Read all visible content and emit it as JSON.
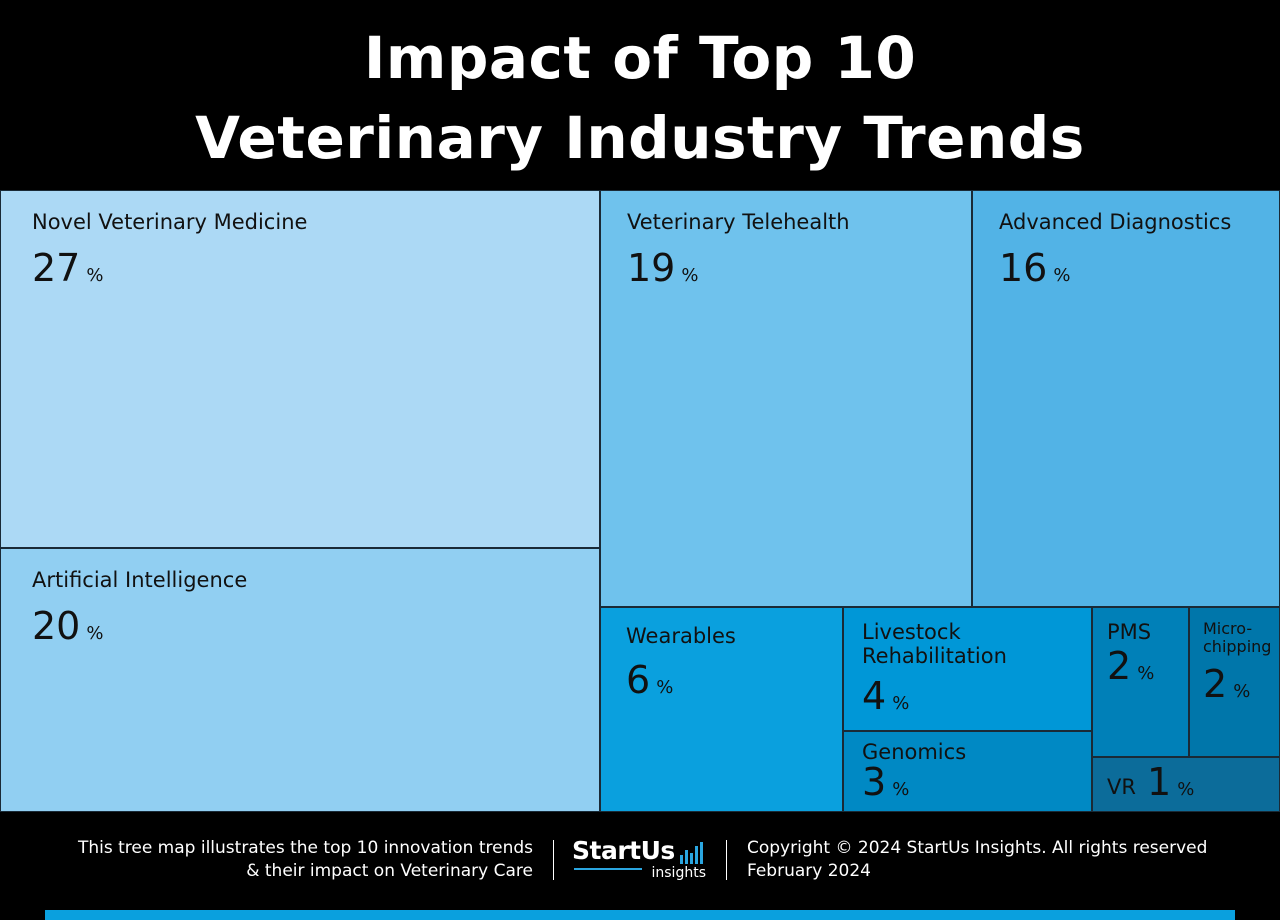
{
  "title": {
    "line1": "Impact of Top 10",
    "line2": "Veterinary Industry Trends"
  },
  "chart_data": {
    "type": "treemap",
    "unit": "%",
    "items": [
      {
        "name": "Novel Veterinary Medicine",
        "value": 27,
        "color": "#acd9f5"
      },
      {
        "name": "Artificial Intelligence",
        "value": 20,
        "color": "#91cff2"
      },
      {
        "name": "Veterinary Telehealth",
        "value": 19,
        "color": "#6fc2ed"
      },
      {
        "name": "Advanced Diagnostics",
        "value": 16,
        "color": "#52b3e6"
      },
      {
        "name": "Wearables",
        "value": 6,
        "color": "#0aa0de"
      },
      {
        "name": "Livestock Rehabilitation",
        "value": 4,
        "color": "#0097d7"
      },
      {
        "name": "Genomics",
        "value": 3,
        "color": "#0089c4"
      },
      {
        "name": "PMS",
        "value": 2,
        "color": "#0080b8"
      },
      {
        "name": "Micro-chipping",
        "value": 2,
        "color": "#0076aa"
      },
      {
        "name": "VR",
        "value": 1,
        "color": "#0c6c9a"
      }
    ]
  },
  "footer": {
    "description_line1": "This tree map illustrates the top 10 innovation trends",
    "description_line2": "& their impact on Veterinary Care",
    "logo_main": "StartUs",
    "logo_sub": "insights",
    "copyright": "Copyright © 2024 StartUs Insights. All rights reserved",
    "date": "February 2024"
  }
}
